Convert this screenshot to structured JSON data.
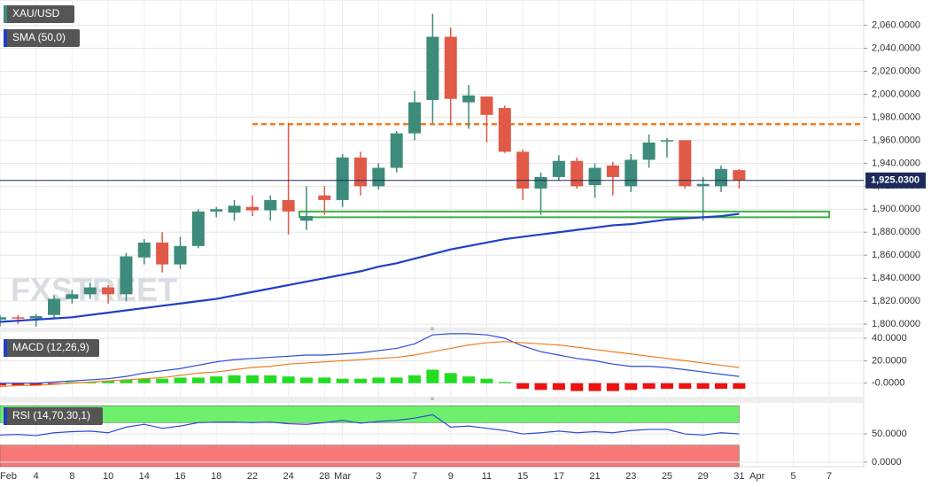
{
  "chart_data": [
    {
      "type": "candlestick",
      "watermark": "FXSTREET",
      "categories": [
        "Feb",
        null,
        "4",
        null,
        "8",
        null,
        "10",
        null,
        "14",
        null,
        "16",
        null,
        "18",
        null,
        "22",
        null,
        "24",
        null,
        "28",
        "Mar",
        null,
        "3",
        null,
        "7",
        null,
        "9",
        null,
        "11",
        null,
        "15",
        null,
        "17",
        null,
        "21",
        null,
        "23",
        null,
        "25",
        null,
        "29",
        null,
        "31",
        "Apr",
        null,
        "5",
        null,
        "7"
      ],
      "series": [
        {
          "name": "XAU/USD",
          "up_color": "#3d8b7a",
          "down_color": "#e05a47",
          "open": [
            1804,
            1806,
            1805,
            1808,
            1822,
            1826,
            1832,
            1826,
            1858,
            1871,
            1852,
            1868,
            1898,
            1897,
            1902,
            1899,
            1908,
            1890,
            1912,
            1908,
            1945,
            1920,
            1936,
            1966,
            1995,
            2050,
            1993,
            1998,
            1988,
            1950,
            1918,
            1928,
            1942,
            1921,
            1938,
            1920,
            1943,
            1960,
            1960,
            1920,
            1920,
            1934,
            null,
            null,
            null,
            null,
            null
          ],
          "high": [
            1808,
            1808,
            1809,
            1825,
            1830,
            1836,
            1834,
            1862,
            1874,
            1880,
            1876,
            1900,
            1902,
            1908,
            1912,
            1912,
            1975,
            1920,
            1920,
            1948,
            1950,
            1940,
            1968,
            2003,
            2070,
            2058,
            2008,
            1998,
            1990,
            1952,
            1932,
            1947,
            1945,
            1940,
            1941,
            1948,
            1965,
            1962,
            1960,
            1928,
            1938,
            1935,
            null,
            null,
            null,
            null,
            null
          ],
          "low": [
            1798,
            1800,
            1798,
            1805,
            1818,
            1822,
            1818,
            1820,
            1852,
            1845,
            1848,
            1866,
            1893,
            1890,
            1894,
            1890,
            1878,
            1882,
            1895,
            1902,
            1912,
            1917,
            1932,
            1960,
            1975,
            1975,
            1970,
            1958,
            1949,
            1908,
            1895,
            1925,
            1918,
            1910,
            1912,
            1915,
            1936,
            1945,
            1918,
            1890,
            1915,
            1918,
            null,
            null,
            null,
            null,
            null
          ],
          "close": [
            1806,
            1805,
            1807,
            1822,
            1826,
            1832,
            1826,
            1859,
            1871,
            1852,
            1868,
            1898,
            1900,
            1903,
            1899,
            1908,
            1898,
            1894,
            1908,
            1945,
            1920,
            1936,
            1966,
            1993,
            2050,
            1996,
            1999,
            1982,
            1950,
            1918,
            1928,
            1942,
            1920,
            1936,
            1928,
            1943,
            1958,
            1960,
            1920,
            1922,
            1935,
            1925,
            null,
            null,
            null,
            null,
            null
          ]
        },
        {
          "name": "SMA (50,0)",
          "color": "#1f3fc8",
          "values": [
            1802,
            1803,
            1804,
            1805,
            1806,
            1808,
            1810,
            1812,
            1814,
            1816,
            1818,
            1820,
            1822,
            1825,
            1828,
            1831,
            1834,
            1837,
            1840,
            1843,
            1846,
            1850,
            1853,
            1857,
            1861,
            1865,
            1868,
            1871,
            1874,
            1876,
            1878,
            1880,
            1882,
            1884,
            1886,
            1887,
            1889,
            1891,
            1892,
            1893,
            1894,
            1896,
            null,
            null,
            null,
            null,
            null
          ]
        }
      ],
      "level": {
        "value": 1974,
        "from": 14,
        "color": "#f07c20"
      },
      "zone": {
        "low": 1893,
        "high": 1898,
        "from": 17,
        "to": 46,
        "color": "#3cb043"
      },
      "last_price": {
        "value": 1925.03,
        "label": "1,925.0300",
        "color": "#1c2b5a"
      },
      "ylim": [
        1797,
        2082
      ],
      "yticks": [
        {
          "value": 1800,
          "label": "1,800.0000"
        },
        {
          "value": 1820,
          "label": "1,820.0000"
        },
        {
          "value": 1840,
          "label": "1,840.0000"
        },
        {
          "value": 1860,
          "label": "1,860.0000"
        },
        {
          "value": 1880,
          "label": "1,880.0000"
        },
        {
          "value": 1900,
          "label": "1,900.0000"
        },
        {
          "value": 1920,
          "label": "1,920.0000"
        },
        {
          "value": 1940,
          "label": "1,940.0000"
        },
        {
          "value": 1960,
          "label": "1,960.0000"
        },
        {
          "value": 1980,
          "label": "1,980.0000"
        },
        {
          "value": 2000,
          "label": "2,000.0000"
        },
        {
          "value": 2020,
          "label": "2,020.0000"
        },
        {
          "value": 2040,
          "label": "2,040.0000"
        },
        {
          "value": 2060,
          "label": "2,060.0000"
        }
      ],
      "grid": true
    },
    {
      "type": "combo",
      "title": "MACD (12,26,9)",
      "histogram": {
        "up_color": "#22dd22",
        "down_color": "#ee1111",
        "values": [
          -2,
          -2,
          -2,
          -1,
          1,
          1,
          2,
          3,
          4,
          4,
          5,
          5,
          6,
          7,
          7,
          7,
          6,
          5,
          5,
          4,
          4,
          5,
          5,
          7,
          12,
          9,
          6,
          4,
          1,
          -5,
          -6,
          -6,
          -7,
          -7,
          -7,
          -6,
          -5,
          -5,
          -5,
          -5,
          -5,
          -5,
          null,
          null,
          null,
          null,
          null
        ]
      },
      "series": [
        {
          "color": "#2c4bd6",
          "values": [
            0,
            0,
            0,
            1,
            2,
            3,
            4,
            6,
            9,
            11,
            13,
            16,
            19,
            21,
            22,
            23,
            24,
            25,
            25,
            26,
            27,
            29,
            31,
            35,
            43,
            44,
            44,
            43,
            40,
            33,
            28,
            25,
            22,
            20,
            17,
            15,
            15,
            14,
            12,
            10,
            8,
            6,
            null,
            null,
            null,
            null,
            null
          ]
        },
        {
          "color": "#f07c20",
          "values": [
            -3,
            -2,
            -2,
            -1,
            0,
            1,
            2,
            3,
            4,
            5,
            7,
            9,
            10,
            12,
            14,
            15,
            17,
            18,
            19,
            20,
            21,
            22,
            23,
            25,
            28,
            31,
            34,
            36,
            37,
            36,
            35,
            34,
            32,
            30,
            28,
            26,
            24,
            22,
            20,
            18,
            16,
            14,
            null,
            null,
            null,
            null,
            null
          ]
        }
      ],
      "ylim": [
        -12,
        45.5
      ],
      "yticks": [
        {
          "value": 40,
          "label": "40.0000"
        },
        {
          "value": 20,
          "label": "20.0000"
        },
        {
          "value": 0,
          "label": "-0.0000"
        }
      ],
      "grid": true
    },
    {
      "type": "line",
      "title": "RSI (14,70,30,1)",
      "bands": [
        {
          "from": 70,
          "to": 100,
          "color": "#6ef06e"
        },
        {
          "from": -8,
          "to": 30,
          "color": "#f87878"
        }
      ],
      "series": [
        {
          "color": "#2c4bd6",
          "values": [
            48,
            49,
            47,
            52,
            54,
            55,
            52,
            62,
            67,
            60,
            64,
            70,
            71,
            71,
            70,
            71,
            68,
            67,
            70,
            74,
            69,
            72,
            74,
            78,
            84,
            62,
            64,
            60,
            56,
            50,
            52,
            55,
            52,
            54,
            52,
            56,
            58,
            58,
            50,
            48,
            52,
            50,
            null,
            null,
            null,
            null,
            null
          ]
        }
      ],
      "ylim": [
        -8,
        105
      ],
      "yticks": [
        {
          "value": 50,
          "label": "50.0000"
        },
        {
          "value": 0,
          "label": "0.0000"
        }
      ],
      "grid": true
    }
  ]
}
